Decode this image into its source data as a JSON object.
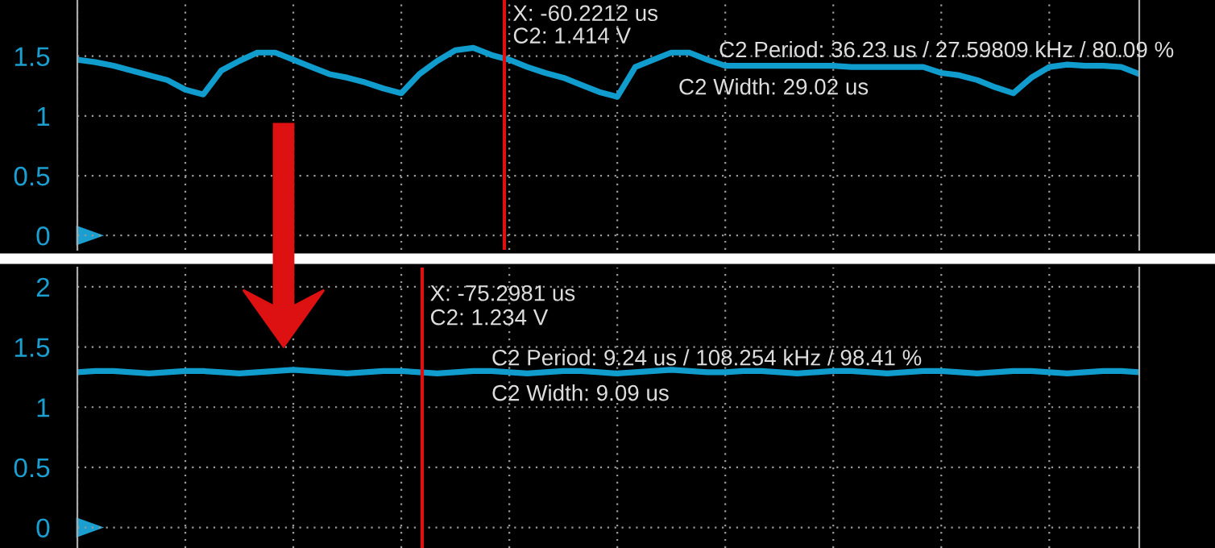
{
  "chart_data": [
    {
      "type": "line",
      "categories": [
        null,
        null,
        null,
        null,
        null,
        null,
        null,
        null,
        null,
        null,
        null,
        null,
        null,
        null,
        null,
        null,
        null,
        null,
        null,
        null,
        null,
        null,
        null,
        null,
        null,
        null,
        null,
        null,
        null,
        null,
        null,
        null,
        null,
        null,
        null,
        null,
        null,
        null,
        null,
        null,
        null,
        null,
        null,
        null,
        null,
        null,
        null,
        null,
        null,
        null,
        null,
        null,
        null,
        null,
        null,
        null,
        null,
        null,
        null,
        null
      ],
      "series": [
        {
          "color": "#109ccc",
          "values": [
            1.47,
            1.45,
            1.42,
            1.38,
            1.34,
            1.3,
            1.22,
            1.18,
            1.38,
            1.46,
            1.53,
            1.53,
            1.47,
            1.41,
            1.35,
            1.32,
            1.28,
            1.23,
            1.19,
            1.35,
            1.46,
            1.55,
            1.57,
            1.51,
            1.47,
            1.41,
            1.36,
            1.32,
            1.26,
            1.2,
            1.16,
            1.41,
            1.47,
            1.53,
            1.53,
            1.47,
            1.42,
            1.42,
            1.42,
            1.42,
            1.42,
            1.42,
            1.42,
            1.41,
            1.41,
            1.41,
            1.41,
            1.41,
            1.36,
            1.34,
            1.3,
            1.24,
            1.19,
            1.32,
            1.41,
            1.43,
            1.42,
            1.42,
            1.41,
            1.35
          ]
        }
      ],
      "ylim": [
        -0.12,
        1.97
      ],
      "yticks": [
        0,
        0.5,
        1,
        1.5
      ],
      "grid": true,
      "tick_labels": "y",
      "annotations": [
        "X: -60.2212 us",
        "C2: 1.414 V",
        "C2 Period: 36.23 us / 27.59809 kHz / 80.09 %",
        "C2 Width: 29.02 us"
      ]
    },
    {
      "type": "line",
      "categories": [
        null,
        null,
        null,
        null,
        null,
        null,
        null,
        null,
        null,
        null,
        null,
        null,
        null,
        null,
        null,
        null,
        null,
        null,
        null,
        null,
        null,
        null,
        null,
        null,
        null,
        null,
        null,
        null,
        null,
        null,
        null,
        null,
        null,
        null,
        null,
        null,
        null,
        null,
        null,
        null,
        null,
        null,
        null,
        null,
        null,
        null,
        null,
        null,
        null,
        null,
        null,
        null,
        null,
        null,
        null,
        null,
        null,
        null,
        null,
        null
      ],
      "series": [
        {
          "color": "#109ccc",
          "values": [
            1.29,
            1.3,
            1.3,
            1.29,
            1.28,
            1.29,
            1.3,
            1.3,
            1.29,
            1.28,
            1.29,
            1.3,
            1.31,
            1.3,
            1.29,
            1.28,
            1.29,
            1.3,
            1.3,
            1.29,
            1.28,
            1.29,
            1.3,
            1.3,
            1.29,
            1.28,
            1.29,
            1.3,
            1.3,
            1.29,
            1.28,
            1.29,
            1.3,
            1.31,
            1.3,
            1.29,
            1.29,
            1.3,
            1.3,
            1.29,
            1.28,
            1.29,
            1.3,
            1.3,
            1.29,
            1.28,
            1.29,
            1.3,
            1.3,
            1.29,
            1.28,
            1.29,
            1.3,
            1.3,
            1.29,
            1.28,
            1.29,
            1.3,
            1.3,
            1.29
          ]
        }
      ],
      "ylim": [
        -0.17,
        2.16
      ],
      "yticks": [
        0,
        0.5,
        1,
        1.5,
        2
      ],
      "grid": true,
      "tick_labels": "y",
      "annotations": [
        "X: -75.2981 us",
        "C2: 1.234 V",
        "C2 Period: 9.24 us / 108.254 kHz / 98.41 %",
        "C2 Width: 9.09 us"
      ]
    }
  ]
}
